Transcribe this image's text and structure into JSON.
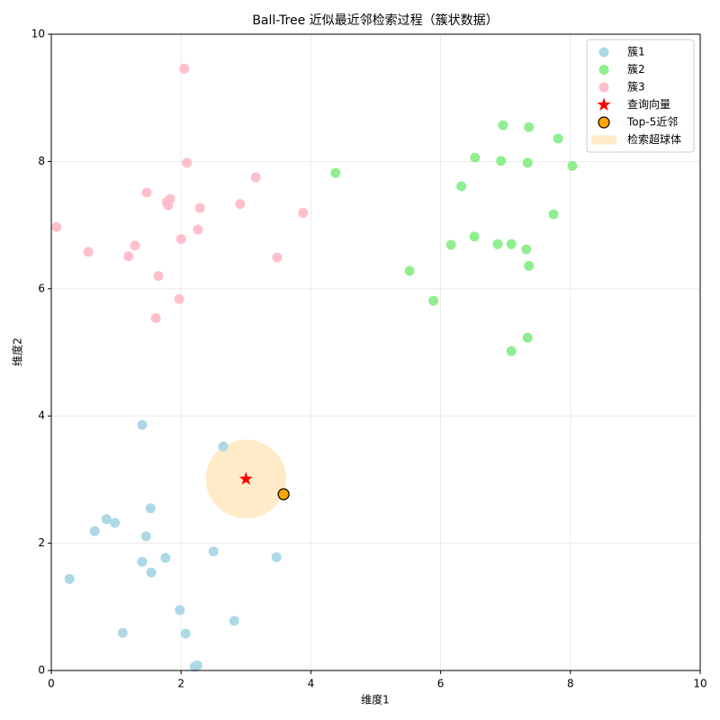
{
  "chart_data": {
    "type": "scatter",
    "title": "Ball-Tree 近似最近邻检索过程（簇状数据）",
    "x_label": "维度1",
    "y_label": "维度2",
    "xlim": [
      0,
      10
    ],
    "ylim": [
      0,
      10
    ],
    "xticks": [
      0,
      2,
      4,
      6,
      8,
      10
    ],
    "yticks": [
      0,
      2,
      4,
      6,
      8,
      10
    ],
    "grid": true,
    "legend": "upper right",
    "series": [
      {
        "name": "簇1",
        "color": "#add8e6",
        "marker": "circle",
        "x": [
          1.4,
          2.65,
          1.53,
          0.67,
          0.85,
          0.98,
          1.46,
          1.4,
          1.76,
          1.54,
          2.5,
          3.47,
          0.28,
          1.98,
          2.82,
          1.1,
          2.07,
          2.21,
          2.25
        ],
        "values": [
          3.86,
          3.52,
          2.55,
          2.19,
          2.38,
          2.32,
          2.11,
          1.71,
          1.77,
          1.54,
          1.87,
          1.78,
          1.44,
          0.95,
          0.78,
          0.59,
          0.58,
          0.06,
          0.08
        ]
      },
      {
        "name": "簇2",
        "color": "#90ee90",
        "marker": "circle",
        "x": [
          4.38,
          6.96,
          7.36,
          7.81,
          6.53,
          6.93,
          7.34,
          8.03,
          6.32,
          7.74,
          6.52,
          6.16,
          6.88,
          7.09,
          7.32,
          7.36,
          5.52,
          5.89,
          7.34,
          7.09
        ],
        "values": [
          7.82,
          8.57,
          8.54,
          8.36,
          8.06,
          8.01,
          7.98,
          7.93,
          7.61,
          7.17,
          6.82,
          6.69,
          6.7,
          6.7,
          6.62,
          6.36,
          6.28,
          5.81,
          5.23,
          5.02
        ]
      },
      {
        "name": "簇3",
        "color": "#ffc0cb",
        "marker": "circle",
        "x": [
          2.05,
          2.09,
          3.15,
          1.47,
          1.83,
          1.78,
          1.8,
          2.29,
          2.91,
          3.88,
          0.08,
          2.26,
          2.0,
          1.29,
          0.57,
          1.19,
          3.48,
          1.65,
          1.97,
          1.61
        ],
        "values": [
          9.46,
          7.98,
          7.75,
          7.51,
          7.41,
          7.36,
          7.31,
          7.27,
          7.33,
          7.19,
          6.97,
          6.93,
          6.78,
          6.68,
          6.58,
          6.51,
          6.49,
          6.2,
          5.84,
          5.54
        ]
      },
      {
        "name": "查询向量",
        "color": "#ff0000",
        "marker": "star",
        "x": [
          3.0
        ],
        "values": [
          3.01
        ]
      },
      {
        "name": "Top-5近邻",
        "color": "#ffa500",
        "marker": "circle-edged",
        "x": [
          3.58
        ],
        "values": [
          2.77
        ]
      },
      {
        "name": "检索超球体",
        "color": "#ffe4b5",
        "marker": "region",
        "x": [
          3.0
        ],
        "values": [
          3.01
        ],
        "radius": [
          0.62
        ]
      }
    ]
  }
}
